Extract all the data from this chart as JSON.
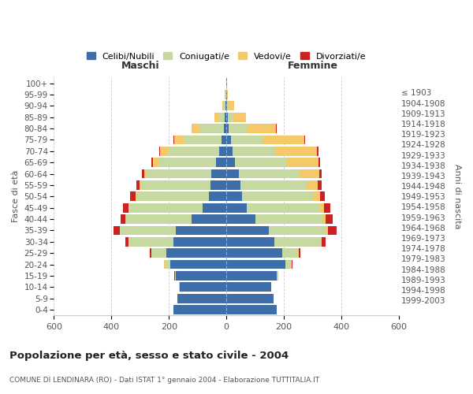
{
  "age_groups": [
    "0-4",
    "5-9",
    "10-14",
    "15-19",
    "20-24",
    "25-29",
    "30-34",
    "35-39",
    "40-44",
    "45-49",
    "50-54",
    "55-59",
    "60-64",
    "65-69",
    "70-74",
    "75-79",
    "80-84",
    "85-89",
    "90-94",
    "95-99",
    "100+"
  ],
  "birth_years": [
    "1999-2003",
    "1994-1998",
    "1989-1993",
    "1984-1988",
    "1979-1983",
    "1974-1978",
    "1969-1973",
    "1964-1968",
    "1959-1963",
    "1954-1958",
    "1949-1953",
    "1944-1948",
    "1939-1943",
    "1934-1938",
    "1929-1933",
    "1924-1928",
    "1919-1923",
    "1914-1918",
    "1909-1913",
    "1904-1908",
    "≤ 1903"
  ],
  "maschi": {
    "celibi": [
      185,
      172,
      162,
      175,
      195,
      210,
      185,
      175,
      120,
      82,
      62,
      56,
      52,
      36,
      26,
      18,
      10,
      5,
      3,
      2,
      1
    ],
    "coniugati": [
      0,
      0,
      2,
      5,
      20,
      50,
      155,
      195,
      230,
      255,
      250,
      240,
      225,
      200,
      175,
      130,
      80,
      22,
      6,
      2,
      0
    ],
    "vedovi": [
      0,
      0,
      0,
      0,
      1,
      1,
      1,
      2,
      3,
      5,
      5,
      5,
      10,
      20,
      30,
      35,
      30,
      15,
      6,
      2,
      1
    ],
    "divorziati": [
      0,
      0,
      0,
      1,
      2,
      5,
      10,
      20,
      15,
      18,
      18,
      12,
      8,
      5,
      3,
      2,
      1,
      0,
      0,
      0,
      0
    ]
  },
  "femmine": {
    "nubili": [
      175,
      165,
      155,
      175,
      205,
      195,
      168,
      148,
      100,
      70,
      55,
      48,
      42,
      30,
      20,
      15,
      8,
      5,
      3,
      1,
      1
    ],
    "coniugate": [
      0,
      0,
      2,
      5,
      22,
      55,
      160,
      200,
      235,
      255,
      250,
      230,
      210,
      180,
      150,
      110,
      65,
      18,
      5,
      1,
      0
    ],
    "vedove": [
      0,
      0,
      0,
      0,
      1,
      2,
      3,
      5,
      10,
      15,
      20,
      40,
      70,
      110,
      145,
      145,
      100,
      45,
      20,
      3,
      0
    ],
    "divorziate": [
      0,
      0,
      0,
      1,
      2,
      5,
      15,
      30,
      25,
      20,
      18,
      12,
      8,
      5,
      5,
      3,
      1,
      0,
      0,
      0,
      0
    ]
  },
  "colors": {
    "celibi": "#3d6eaa",
    "coniugati": "#c5d9a0",
    "vedovi": "#f5c96a",
    "divorziati": "#cc2222"
  },
  "xlim": 600,
  "title": "Popolazione per età, sesso e stato civile - 2004",
  "subtitle": "COMUNE DI LENDINARA (RO) - Dati ISTAT 1° gennaio 2004 - Elaborazione TUTTITALIA.IT",
  "ylabel_left": "Fasce di età",
  "ylabel_right": "Anni di nascita",
  "xlabel_maschi": "Maschi",
  "xlabel_femmine": "Femmine",
  "background_color": "#ffffff",
  "grid_color": "#cccccc"
}
